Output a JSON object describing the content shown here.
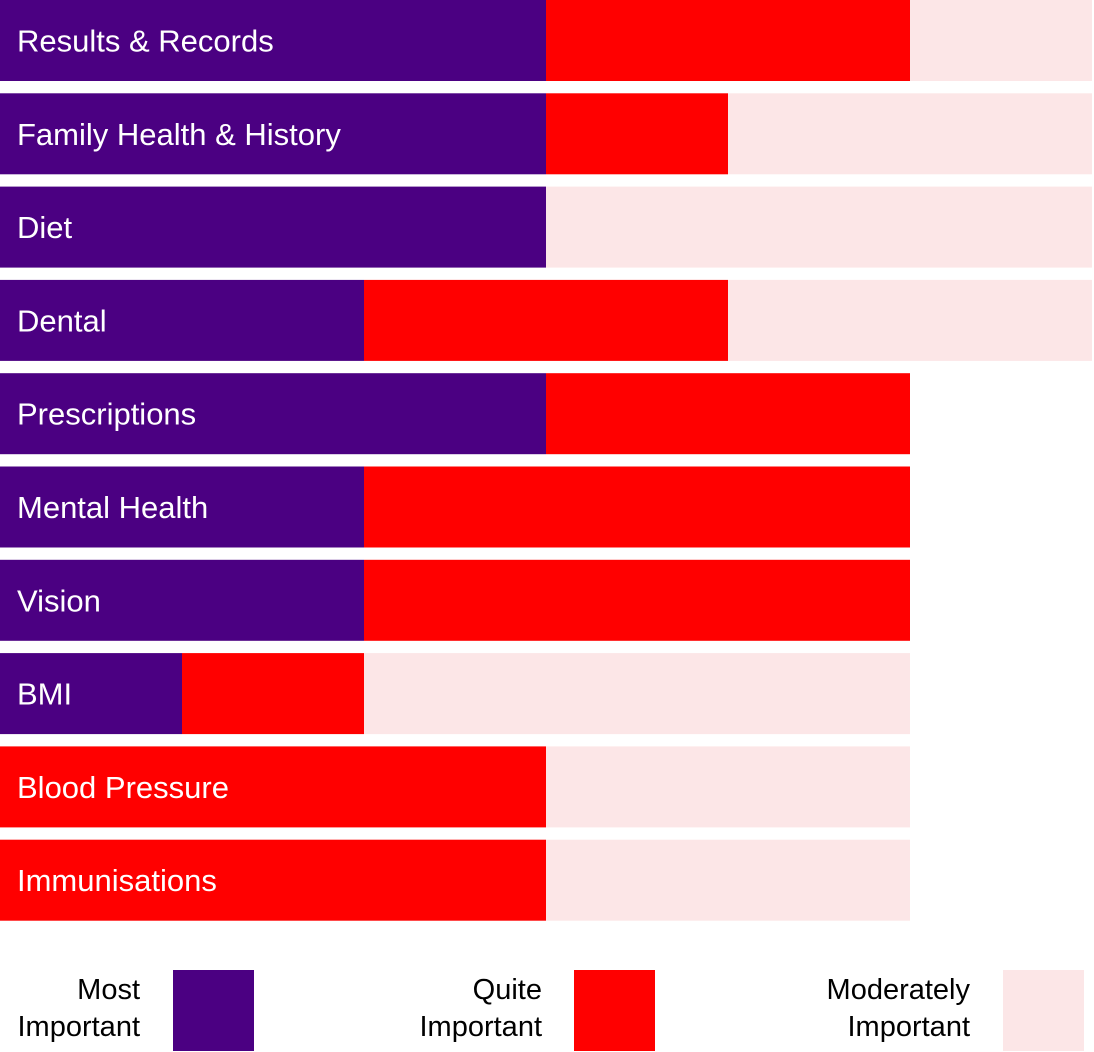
{
  "chart_data": {
    "type": "bar",
    "orientation": "horizontal",
    "stacked": true,
    "title": "",
    "xlabel": "",
    "ylabel": "",
    "units": "segments (each unit = one fixed-width block)",
    "xlim": [
      0,
      6
    ],
    "grid": false,
    "legend_position": "bottom",
    "categories": [
      "Results & Records",
      "Family Health & History",
      "Diet",
      "Dental",
      "Prescriptions",
      "Mental Health",
      "Vision",
      "BMI",
      "Blood Pressure",
      "Immunisations"
    ],
    "series": [
      {
        "name": "Most Important",
        "key": "most",
        "color": "#4B0082",
        "values": [
          3,
          3,
          3,
          2,
          3,
          2,
          2,
          1,
          0,
          0
        ]
      },
      {
        "name": "Quite Important",
        "key": "quite",
        "color": "#FF0000",
        "values": [
          2,
          1,
          0,
          2,
          2,
          3,
          3,
          1,
          3,
          3
        ]
      },
      {
        "name": "Moderately Important",
        "key": "moderately",
        "color": "#FCE6E7",
        "values": [
          1,
          2,
          3,
          2,
          0,
          0,
          0,
          3,
          2,
          2
        ]
      }
    ]
  },
  "legend": {
    "most_label": "Most\nImportant",
    "quite_label": "Quite\nImportant",
    "moderately_label": "Moderately\nImportant"
  }
}
